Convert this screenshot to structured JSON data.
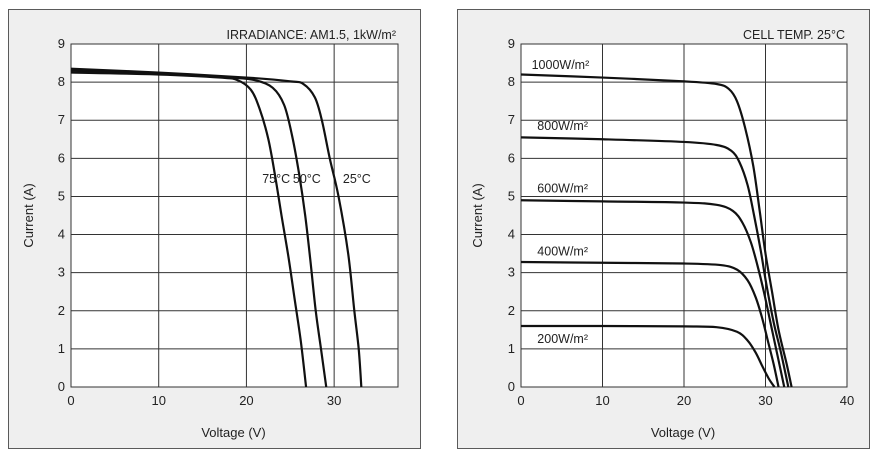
{
  "chart_data": [
    {
      "type": "line",
      "annotation": "IRRADIANCE: AM1.5, 1kW/m²",
      "xlabel": "Voltage (V)",
      "ylabel": "Current  (A)",
      "xlim": [
        0,
        35
      ],
      "ylim": [
        0,
        9
      ],
      "xticks": [
        0,
        10,
        20,
        30
      ],
      "yticks": [
        0,
        1,
        2,
        3,
        4,
        5,
        6,
        7,
        8,
        9
      ],
      "grid": true,
      "series": [
        {
          "name": "25°C",
          "label_at": [
            31,
            5.35
          ],
          "points": [
            [
              0,
              8.35
            ],
            [
              10,
              8.25
            ],
            [
              20,
              8.12
            ],
            [
              25,
              8.02
            ],
            [
              26.5,
              7.95
            ],
            [
              27.8,
              7.6
            ],
            [
              28.6,
              7.0
            ],
            [
              29.5,
              6.0
            ],
            [
              30.5,
              5.0
            ],
            [
              31.6,
              3.5
            ],
            [
              32.3,
              2.0
            ],
            [
              32.8,
              1.0
            ],
            [
              33.1,
              0
            ]
          ]
        },
        {
          "name": "50°C",
          "label_at": [
            25.3,
            5.35
          ],
          "points": [
            [
              0,
              8.3
            ],
            [
              10,
              8.22
            ],
            [
              18,
              8.12
            ],
            [
              21,
              8.05
            ],
            [
              23,
              7.85
            ],
            [
              24.3,
              7.4
            ],
            [
              25.2,
              6.6
            ],
            [
              26,
              5.6
            ],
            [
              26.7,
              4.5
            ],
            [
              27.3,
              3.3
            ],
            [
              27.9,
              2.0
            ],
            [
              28.5,
              1.0
            ],
            [
              29.1,
              0
            ]
          ]
        },
        {
          "name": "75°C",
          "label_at": [
            21.8,
            5.35
          ],
          "points": [
            [
              0,
              8.25
            ],
            [
              10,
              8.2
            ],
            [
              17,
              8.12
            ],
            [
              19,
              8.05
            ],
            [
              20.5,
              7.8
            ],
            [
              21.5,
              7.3
            ],
            [
              22.5,
              6.5
            ],
            [
              23.3,
              5.5
            ],
            [
              24,
              4.5
            ],
            [
              24.8,
              3.4
            ],
            [
              25.5,
              2.3
            ],
            [
              26.2,
              1.2
            ],
            [
              26.8,
              0
            ]
          ]
        }
      ]
    },
    {
      "type": "line",
      "annotation": "CELL TEMP. 25°C",
      "xlabel": "Voltage (V)",
      "ylabel": "Current  (A)",
      "xlim": [
        0,
        40
      ],
      "ylim": [
        0,
        9
      ],
      "xticks": [
        0,
        10,
        20,
        30,
        40
      ],
      "yticks": [
        0,
        1,
        2,
        3,
        4,
        5,
        6,
        7,
        8,
        9
      ],
      "grid": true,
      "series": [
        {
          "name": "1000W/m²",
          "label_at": [
            1.3,
            8.35
          ],
          "points": [
            [
              0,
              8.2
            ],
            [
              10,
              8.12
            ],
            [
              20,
              8.02
            ],
            [
              24,
              7.95
            ],
            [
              25.5,
              7.82
            ],
            [
              26.5,
              7.5
            ],
            [
              27.5,
              6.8
            ],
            [
              28.5,
              5.8
            ],
            [
              29.3,
              4.6
            ],
            [
              30,
              3.5
            ],
            [
              30.8,
              2.5
            ],
            [
              31.6,
              1.5
            ],
            [
              32.6,
              0.6
            ],
            [
              33.2,
              0
            ]
          ]
        },
        {
          "name": "800W/m²",
          "label_at": [
            2.0,
            6.75
          ],
          "points": [
            [
              0,
              6.55
            ],
            [
              10,
              6.5
            ],
            [
              20,
              6.43
            ],
            [
              24,
              6.35
            ],
            [
              25.8,
              6.2
            ],
            [
              26.8,
              5.9
            ],
            [
              27.8,
              5.3
            ],
            [
              28.6,
              4.5
            ],
            [
              29.4,
              3.6
            ],
            [
              30.1,
              2.7
            ],
            [
              31,
              1.7
            ],
            [
              31.9,
              0.9
            ],
            [
              32.8,
              0
            ]
          ]
        },
        {
          "name": "600W/m²",
          "label_at": [
            2.0,
            5.1
          ],
          "points": [
            [
              0,
              4.9
            ],
            [
              10,
              4.87
            ],
            [
              20,
              4.84
            ],
            [
              24,
              4.78
            ],
            [
              26,
              4.62
            ],
            [
              27.2,
              4.3
            ],
            [
              28.2,
              3.8
            ],
            [
              29,
              3.2
            ],
            [
              29.8,
              2.5
            ],
            [
              30.6,
              1.7
            ],
            [
              31.4,
              0.9
            ],
            [
              32.3,
              0
            ]
          ]
        },
        {
          "name": "400W/m²",
          "label_at": [
            2.0,
            3.45
          ],
          "points": [
            [
              0,
              3.28
            ],
            [
              10,
              3.26
            ],
            [
              20,
              3.24
            ],
            [
              24.5,
              3.2
            ],
            [
              26.5,
              3.08
            ],
            [
              27.8,
              2.8
            ],
            [
              28.8,
              2.35
            ],
            [
              29.6,
              1.8
            ],
            [
              30.3,
              1.2
            ],
            [
              31,
              0.6
            ],
            [
              31.6,
              0
            ]
          ]
        },
        {
          "name": "200W/m²",
          "label_at": [
            2.0,
            1.15
          ],
          "points": [
            [
              0,
              1.6
            ],
            [
              10,
              1.6
            ],
            [
              20,
              1.59
            ],
            [
              24,
              1.57
            ],
            [
              26.5,
              1.45
            ],
            [
              27.8,
              1.22
            ],
            [
              28.8,
              0.9
            ],
            [
              29.6,
              0.55
            ],
            [
              30.4,
              0.22
            ],
            [
              31.1,
              0
            ]
          ]
        }
      ]
    }
  ]
}
